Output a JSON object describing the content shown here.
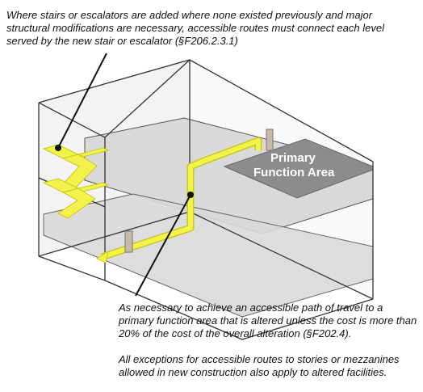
{
  "notes": {
    "top": "Where stairs or escalators are added where none existed previously and major structural modifications are necessary, accessible routes must connect each level served by the new stair or escalator (§F206.2.3.1)",
    "path_of_travel": "As necessary to achieve an accessible path of travel to a primary function area that is altered unless the cost is more than 20% of the cost of the overall alteration (§F202.4).",
    "exceptions": "All exceptions for accessible routes to stories or mezzanines allowed in new construction also apply to altered facilities."
  },
  "primary_function_area": {
    "line1": "Primary",
    "line2": "Function Area",
    "fill": "#8c8c8c"
  },
  "colors": {
    "route": "#f2f24a",
    "route_stroke": "#c8c820",
    "floor": "#dcdcdc",
    "wall": "#444444",
    "door": "#c9b9a9"
  }
}
